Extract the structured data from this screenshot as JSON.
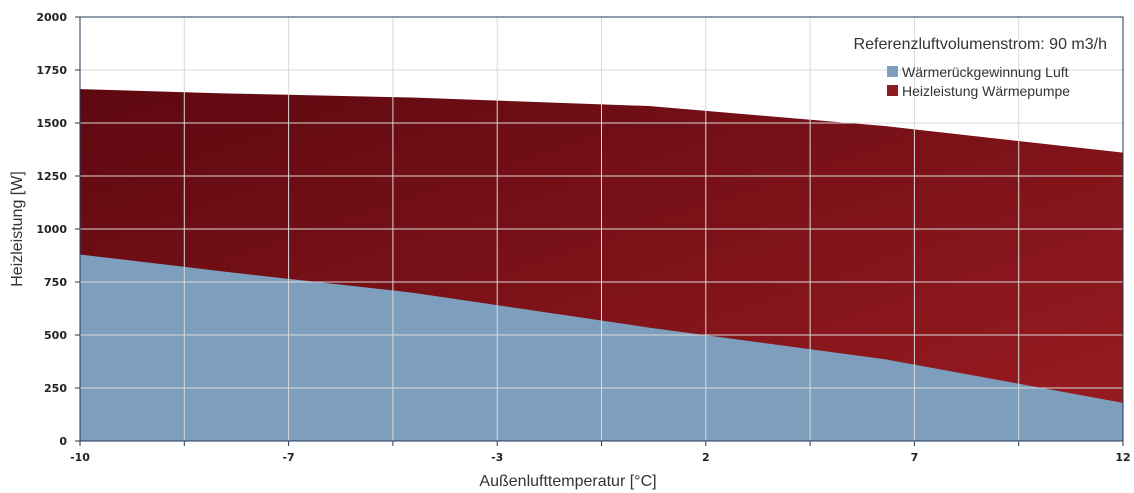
{
  "chart_data": {
    "type": "area",
    "stacked": true,
    "title": "",
    "xlabel": "Außenlufttemperatur [°C]",
    "ylabel": "Heizleistung [W]",
    "annotation": "Referenzluftvolumenstrom: 90 m3/h",
    "legend_position": "top-right",
    "grid": true,
    "xlim": [
      -10,
      12
    ],
    "ylim": [
      0,
      2000
    ],
    "x_ticks": [
      -10,
      -7,
      -3,
      2,
      7,
      12
    ],
    "x_tick_labels": [
      "-10",
      "-7",
      "-3",
      "2",
      "7",
      "12"
    ],
    "y_ticks": [
      0,
      250,
      500,
      750,
      1000,
      1250,
      1500,
      1750,
      2000
    ],
    "y_tick_labels": [
      "0",
      "250",
      "500",
      "750",
      "1000",
      "1250",
      "1500",
      "1750",
      "2000"
    ],
    "x": [
      -10,
      -7,
      -3,
      2,
      7,
      12
    ],
    "series": [
      {
        "name": "Wärmerückgewinnung Luft",
        "color": "#7d9ebc",
        "values": [
          880,
          800,
          700,
          535,
          385,
          180
        ]
      },
      {
        "name": "Heizleistung Wärmepumpe",
        "color": "#8e1a1f",
        "gradient": [
          "#5e0810",
          "#9a1c21"
        ],
        "total_values": [
          1660,
          1640,
          1620,
          1580,
          1485,
          1360
        ]
      }
    ]
  }
}
